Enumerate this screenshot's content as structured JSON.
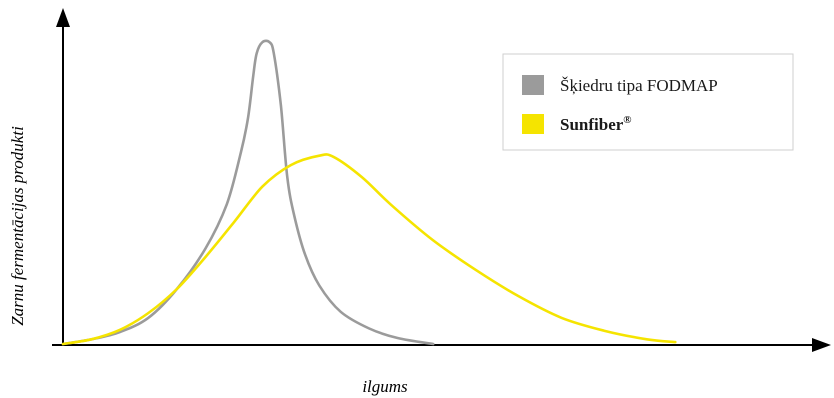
{
  "chart_data": {
    "type": "line",
    "title": "",
    "xlabel": "ilgums",
    "ylabel": "Zarnu fermentācijas produkti",
    "xlim": [
      0,
      100
    ],
    "ylim": [
      0,
      100
    ],
    "grid": false,
    "legend_position": "top-right",
    "series": [
      {
        "name": "Šķiedru tipa FODMAP",
        "color": "#9b9b9b",
        "points": [
          [
            0,
            0
          ],
          [
            4,
            1.5
          ],
          [
            8,
            3.8
          ],
          [
            12,
            8.3
          ],
          [
            16,
            17.4
          ],
          [
            20,
            30.2
          ],
          [
            23,
            44.2
          ],
          [
            25,
            60.8
          ],
          [
            26,
            71.7
          ],
          [
            26.7,
            84.5
          ],
          [
            27.2,
            92
          ],
          [
            28,
            95.5
          ],
          [
            29,
            95.5
          ],
          [
            29.6,
            92
          ],
          [
            30.6,
            75.5
          ],
          [
            31.5,
            52.8
          ],
          [
            32.5,
            40.4
          ],
          [
            34,
            28.3
          ],
          [
            36,
            18.5
          ],
          [
            39,
            10.2
          ],
          [
            43,
            4.9
          ],
          [
            47,
            1.9
          ],
          [
            52,
            0
          ]
        ]
      },
      {
        "name": "Sunfiber",
        "name_suffix": "®",
        "color": "#f5e400",
        "points": [
          [
            0,
            0
          ],
          [
            4,
            1.5
          ],
          [
            8,
            4.5
          ],
          [
            12,
            9.8
          ],
          [
            16,
            17.4
          ],
          [
            20,
            27.5
          ],
          [
            24,
            38.5
          ],
          [
            28,
            49.8
          ],
          [
            32,
            56.6
          ],
          [
            36,
            59.6
          ],
          [
            38,
            59.2
          ],
          [
            42,
            52.8
          ],
          [
            46,
            44.2
          ],
          [
            52,
            32.8
          ],
          [
            58,
            23.4
          ],
          [
            64,
            15.1
          ],
          [
            70,
            8.3
          ],
          [
            76,
            4.2
          ],
          [
            82,
            1.5
          ],
          [
            86,
            0.6
          ]
        ]
      }
    ]
  }
}
